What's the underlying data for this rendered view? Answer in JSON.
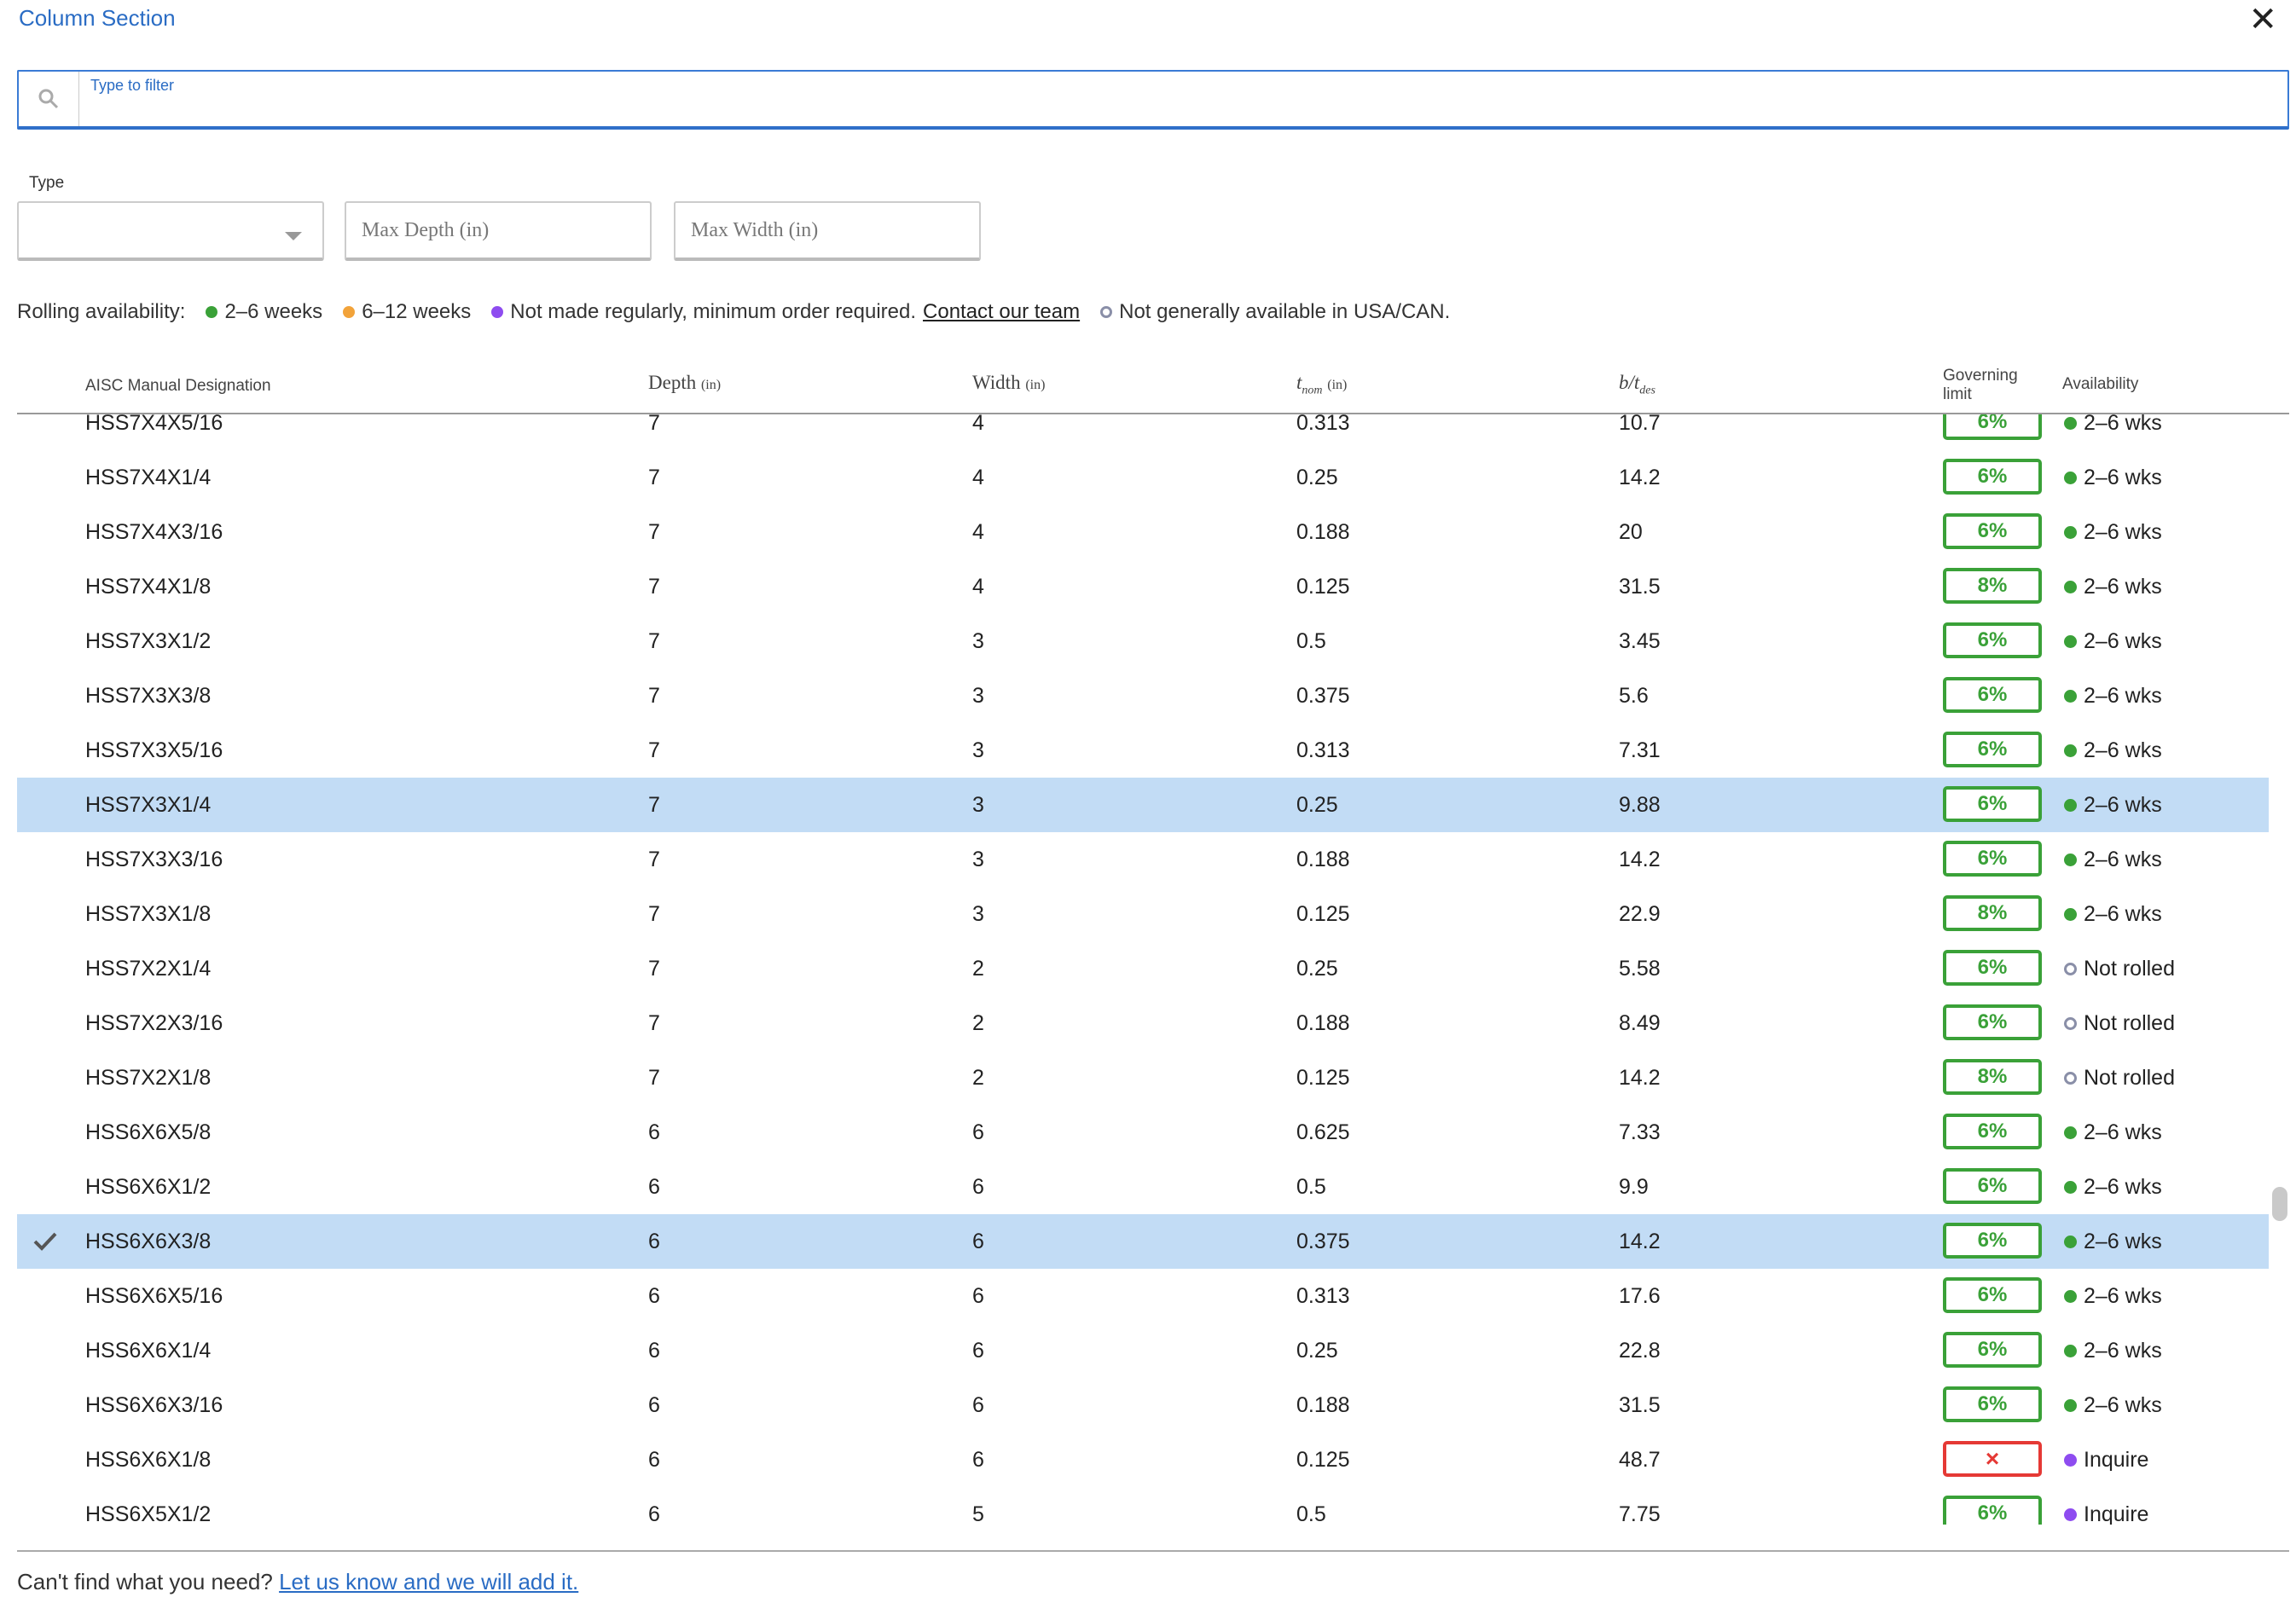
{
  "dialog": {
    "title": "Column Section",
    "close": "✕"
  },
  "filter": {
    "label": "Type to filter",
    "value": "",
    "icon": "search-icon"
  },
  "controls": {
    "type_label": "Type",
    "type_value": "",
    "max_depth_placeholder": "Max Depth (in)",
    "max_width_placeholder": "Max Width (in)"
  },
  "legend": {
    "prefix": "Rolling availability:",
    "items": [
      {
        "label": "2–6 weeks",
        "color": "#3aa138"
      },
      {
        "label": "6–12 weeks",
        "color": "#f2a33a"
      },
      {
        "label": "Not made regularly, minimum order required.",
        "color": "#8e4cf0"
      }
    ],
    "contact_link": "Contact our team",
    "hollow_label": "Not generally available in USA/CAN."
  },
  "columns": {
    "designation": "AISC Manual Designation",
    "depth": "Depth",
    "depth_unit": "(in)",
    "width": "Width",
    "width_unit": "(in)",
    "tnom_t": "t",
    "tnom_sub": "nom",
    "tnom_unit": "(in)",
    "bt_b": "b/t",
    "bt_sub": "des",
    "governing_1": "Governing",
    "governing_2": "limit",
    "availability": "Availability"
  },
  "colors": {
    "green": "#3aa138",
    "purple": "#8e4cf0",
    "hollow": "#8a8fa8",
    "fail": "#e53935",
    "selected_row": "#c2dcf5"
  },
  "rows": [
    {
      "name": "HSS7X4X5/16",
      "depth": "7",
      "width": "4",
      "tnom": "0.313",
      "bt": "10.7",
      "gov": "6%",
      "status": "green",
      "avail": "2–6 wks"
    },
    {
      "name": "HSS7X4X1/4",
      "depth": "7",
      "width": "4",
      "tnom": "0.25",
      "bt": "14.2",
      "gov": "6%",
      "status": "green",
      "avail": "2–6 wks"
    },
    {
      "name": "HSS7X4X3/16",
      "depth": "7",
      "width": "4",
      "tnom": "0.188",
      "bt": "20",
      "gov": "6%",
      "status": "green",
      "avail": "2–6 wks"
    },
    {
      "name": "HSS7X4X1/8",
      "depth": "7",
      "width": "4",
      "tnom": "0.125",
      "bt": "31.5",
      "gov": "8%",
      "status": "green",
      "avail": "2–6 wks"
    },
    {
      "name": "HSS7X3X1/2",
      "depth": "7",
      "width": "3",
      "tnom": "0.5",
      "bt": "3.45",
      "gov": "6%",
      "status": "green",
      "avail": "2–6 wks"
    },
    {
      "name": "HSS7X3X3/8",
      "depth": "7",
      "width": "3",
      "tnom": "0.375",
      "bt": "5.6",
      "gov": "6%",
      "status": "green",
      "avail": "2–6 wks"
    },
    {
      "name": "HSS7X3X5/16",
      "depth": "7",
      "width": "3",
      "tnom": "0.313",
      "bt": "7.31",
      "gov": "6%",
      "status": "green",
      "avail": "2–6 wks"
    },
    {
      "name": "HSS7X3X1/4",
      "depth": "7",
      "width": "3",
      "tnom": "0.25",
      "bt": "9.88",
      "gov": "6%",
      "status": "green",
      "avail": "2–6 wks",
      "highlight": true
    },
    {
      "name": "HSS7X3X3/16",
      "depth": "7",
      "width": "3",
      "tnom": "0.188",
      "bt": "14.2",
      "gov": "6%",
      "status": "green",
      "avail": "2–6 wks"
    },
    {
      "name": "HSS7X3X1/8",
      "depth": "7",
      "width": "3",
      "tnom": "0.125",
      "bt": "22.9",
      "gov": "8%",
      "status": "green",
      "avail": "2–6 wks"
    },
    {
      "name": "HSS7X2X1/4",
      "depth": "7",
      "width": "2",
      "tnom": "0.25",
      "bt": "5.58",
      "gov": "6%",
      "status": "hollow",
      "avail": "Not rolled"
    },
    {
      "name": "HSS7X2X3/16",
      "depth": "7",
      "width": "2",
      "tnom": "0.188",
      "bt": "8.49",
      "gov": "6%",
      "status": "hollow",
      "avail": "Not rolled"
    },
    {
      "name": "HSS7X2X1/8",
      "depth": "7",
      "width": "2",
      "tnom": "0.125",
      "bt": "14.2",
      "gov": "8%",
      "status": "hollow",
      "avail": "Not rolled"
    },
    {
      "name": "HSS6X6X5/8",
      "depth": "6",
      "width": "6",
      "tnom": "0.625",
      "bt": "7.33",
      "gov": "6%",
      "status": "green",
      "avail": "2–6 wks"
    },
    {
      "name": "HSS6X6X1/2",
      "depth": "6",
      "width": "6",
      "tnom": "0.5",
      "bt": "9.9",
      "gov": "6%",
      "status": "green",
      "avail": "2–6 wks"
    },
    {
      "name": "HSS6X6X3/8",
      "depth": "6",
      "width": "6",
      "tnom": "0.375",
      "bt": "14.2",
      "gov": "6%",
      "status": "green",
      "avail": "2–6 wks",
      "highlight": true,
      "checked": true
    },
    {
      "name": "HSS6X6X5/16",
      "depth": "6",
      "width": "6",
      "tnom": "0.313",
      "bt": "17.6",
      "gov": "6%",
      "status": "green",
      "avail": "2–6 wks"
    },
    {
      "name": "HSS6X6X1/4",
      "depth": "6",
      "width": "6",
      "tnom": "0.25",
      "bt": "22.8",
      "gov": "6%",
      "status": "green",
      "avail": "2–6 wks"
    },
    {
      "name": "HSS6X6X3/16",
      "depth": "6",
      "width": "6",
      "tnom": "0.188",
      "bt": "31.5",
      "gov": "6%",
      "status": "green",
      "avail": "2–6 wks"
    },
    {
      "name": "HSS6X6X1/8",
      "depth": "6",
      "width": "6",
      "tnom": "0.125",
      "bt": "48.7",
      "gov": "×",
      "fail": true,
      "status": "purple",
      "avail": "Inquire"
    },
    {
      "name": "HSS6X5X1/2",
      "depth": "6",
      "width": "5",
      "tnom": "0.5",
      "bt": "7.75",
      "gov": "6%",
      "status": "purple",
      "avail": "Inquire"
    }
  ],
  "footer": {
    "text": "Can't find what you need?",
    "link": "Let us know and we will add it."
  }
}
